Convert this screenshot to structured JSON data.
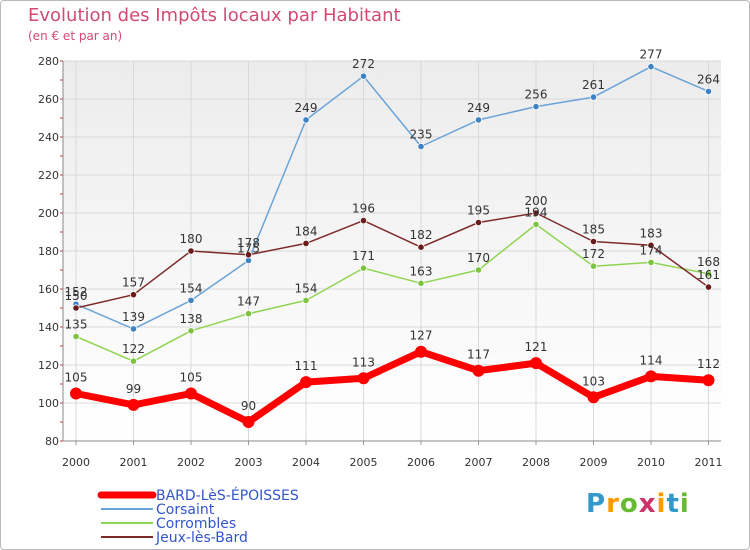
{
  "header": {
    "title": "Evolution des Impôts locaux par Habitant",
    "subtitle": "(en € et par an)"
  },
  "logo": {
    "text": "Proxiti",
    "letters": [
      "P",
      "r",
      "o",
      "x",
      "i",
      "t",
      "i"
    ],
    "colors": [
      "#3399cc",
      "#ff9900",
      "#66bb33",
      "#cc3366",
      "#ff9900",
      "#3399cc",
      "#66bb33"
    ]
  },
  "chart_data": {
    "type": "line",
    "title": "Evolution des Impôts locaux par Habitant",
    "subtitle": "(en € et par an)",
    "xlabel": "",
    "ylabel": "",
    "ylim": [
      80,
      280
    ],
    "yticks": [
      80,
      100,
      120,
      140,
      160,
      180,
      200,
      220,
      240,
      260,
      280
    ],
    "grid": true,
    "legend_position": "bottom-left",
    "x": [
      "2000",
      "2001",
      "2002",
      "2003",
      "2004",
      "2005",
      "2006",
      "2007",
      "2008",
      "2009",
      "2010",
      "2011"
    ],
    "series": [
      {
        "name": "Corsaint",
        "color": "#6aa3d8",
        "marker_color": "#3e82c4",
        "values": [
          152,
          139,
          154,
          175,
          249,
          272,
          235,
          249,
          256,
          261,
          277,
          264
        ],
        "labels": [
          "152",
          "139",
          "154",
          "175",
          "249",
          "272",
          "235",
          "249",
          "256",
          "261",
          "277",
          "264"
        ]
      },
      {
        "name": "Corrombles",
        "color": "#8fd454",
        "marker_color": "#7cc440",
        "values": [
          135,
          122,
          138,
          147,
          154,
          171,
          163,
          170,
          194,
          172,
          174,
          168
        ],
        "labels": [
          "135",
          "122",
          "138",
          "147",
          "154",
          "171",
          "163",
          "170",
          "194",
          "172",
          "174",
          "168"
        ]
      },
      {
        "name": "Jeux-lès-Bard",
        "color": "#7e2a2a",
        "marker_color": "#6a1a1a",
        "values": [
          150,
          157,
          180,
          178,
          184,
          196,
          182,
          195,
          200,
          185,
          183,
          161
        ],
        "labels": [
          "150",
          "157",
          "180",
          "178",
          "184",
          "196",
          "182",
          "195",
          "200",
          "185",
          "183",
          "161"
        ]
      },
      {
        "name": "BARD-LèS-ÉPOISSES",
        "color": "#ff0000",
        "marker_color": "#ff0000",
        "values": [
          105,
          99,
          105,
          90,
          111,
          113,
          127,
          117,
          121,
          103,
          114,
          112
        ],
        "labels": [
          "105",
          "99",
          "105",
          "90",
          "111",
          "113",
          "127",
          "117",
          "121",
          "103",
          "114",
          "112"
        ]
      }
    ],
    "legend": [
      {
        "name": "BARD-LèS-ÉPOISSES",
        "color": "#ff0000",
        "weight": "thick"
      },
      {
        "name": "Corsaint",
        "color": "#6aa3d8",
        "weight": "thin"
      },
      {
        "name": "Corrombles",
        "color": "#8fd454",
        "weight": "thin"
      },
      {
        "name": "Jeux-lès-Bard",
        "color": "#7e2a2a",
        "weight": "thin"
      }
    ]
  }
}
